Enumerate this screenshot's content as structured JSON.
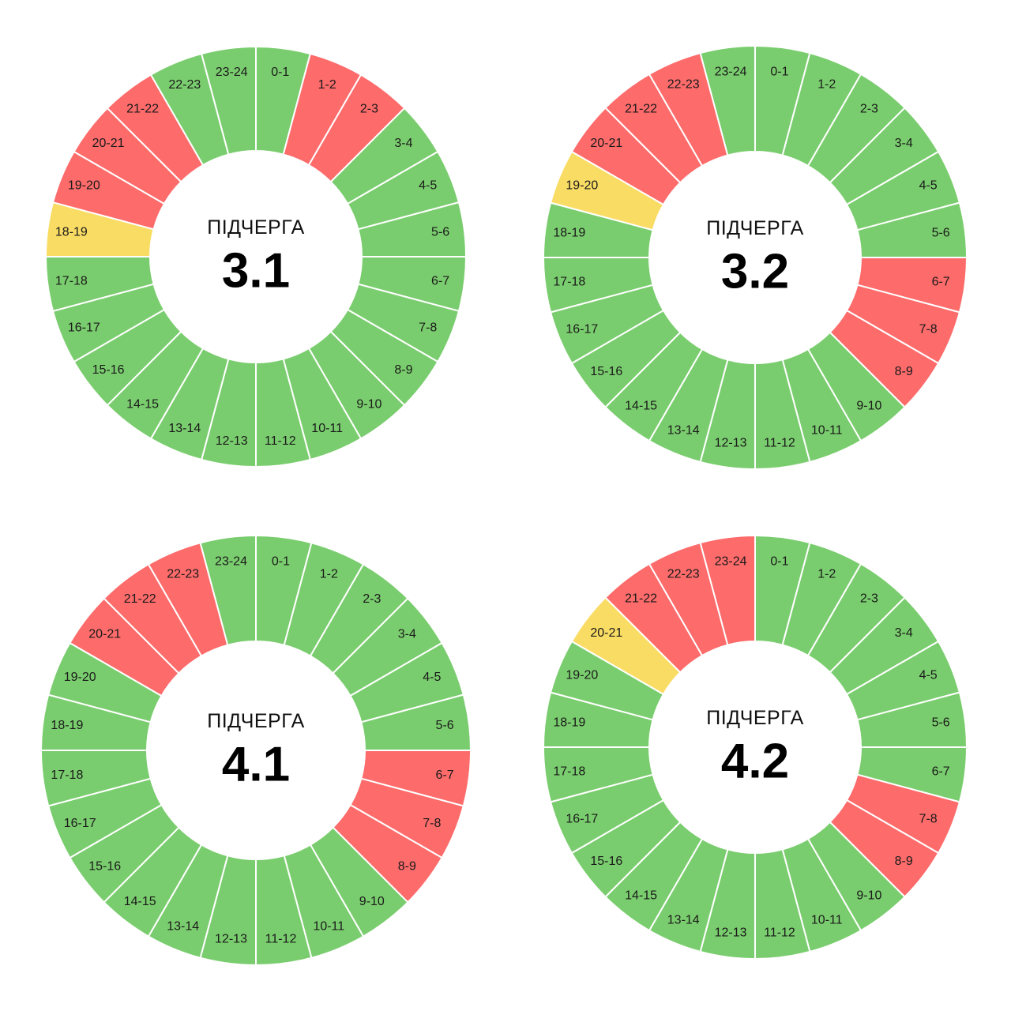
{
  "colors": {
    "on": "#7acd6e",
    "off": "#fd6b6b",
    "maybe": "#f9dc64"
  },
  "center_label": "ПІДЧЕРГА",
  "chart_data": [
    {
      "type": "pie",
      "subgroup": "3.1",
      "slices": [
        {
          "hour": "0-1",
          "state": "on"
        },
        {
          "hour": "1-2",
          "state": "off"
        },
        {
          "hour": "2-3",
          "state": "off"
        },
        {
          "hour": "3-4",
          "state": "on"
        },
        {
          "hour": "4-5",
          "state": "on"
        },
        {
          "hour": "5-6",
          "state": "on"
        },
        {
          "hour": "6-7",
          "state": "on"
        },
        {
          "hour": "7-8",
          "state": "on"
        },
        {
          "hour": "8-9",
          "state": "on"
        },
        {
          "hour": "9-10",
          "state": "on"
        },
        {
          "hour": "10-11",
          "state": "on"
        },
        {
          "hour": "11-12",
          "state": "on"
        },
        {
          "hour": "12-13",
          "state": "on"
        },
        {
          "hour": "13-14",
          "state": "on"
        },
        {
          "hour": "14-15",
          "state": "on"
        },
        {
          "hour": "15-16",
          "state": "on"
        },
        {
          "hour": "16-17",
          "state": "on"
        },
        {
          "hour": "17-18",
          "state": "on"
        },
        {
          "hour": "18-19",
          "state": "maybe"
        },
        {
          "hour": "19-20",
          "state": "off"
        },
        {
          "hour": "20-21",
          "state": "off"
        },
        {
          "hour": "21-22",
          "state": "off"
        },
        {
          "hour": "22-23",
          "state": "on"
        },
        {
          "hour": "23-24",
          "state": "on"
        }
      ]
    },
    {
      "type": "pie",
      "subgroup": "3.2",
      "slices": [
        {
          "hour": "0-1",
          "state": "on"
        },
        {
          "hour": "1-2",
          "state": "on"
        },
        {
          "hour": "2-3",
          "state": "on"
        },
        {
          "hour": "3-4",
          "state": "on"
        },
        {
          "hour": "4-5",
          "state": "on"
        },
        {
          "hour": "5-6",
          "state": "on"
        },
        {
          "hour": "6-7",
          "state": "off"
        },
        {
          "hour": "7-8",
          "state": "off"
        },
        {
          "hour": "8-9",
          "state": "off"
        },
        {
          "hour": "9-10",
          "state": "on"
        },
        {
          "hour": "10-11",
          "state": "on"
        },
        {
          "hour": "11-12",
          "state": "on"
        },
        {
          "hour": "12-13",
          "state": "on"
        },
        {
          "hour": "13-14",
          "state": "on"
        },
        {
          "hour": "14-15",
          "state": "on"
        },
        {
          "hour": "15-16",
          "state": "on"
        },
        {
          "hour": "16-17",
          "state": "on"
        },
        {
          "hour": "17-18",
          "state": "on"
        },
        {
          "hour": "18-19",
          "state": "on"
        },
        {
          "hour": "19-20",
          "state": "maybe"
        },
        {
          "hour": "20-21",
          "state": "off"
        },
        {
          "hour": "21-22",
          "state": "off"
        },
        {
          "hour": "22-23",
          "state": "off"
        },
        {
          "hour": "23-24",
          "state": "on"
        }
      ]
    },
    {
      "type": "pie",
      "subgroup": "4.1",
      "slices": [
        {
          "hour": "0-1",
          "state": "on"
        },
        {
          "hour": "1-2",
          "state": "on"
        },
        {
          "hour": "2-3",
          "state": "on"
        },
        {
          "hour": "3-4",
          "state": "on"
        },
        {
          "hour": "4-5",
          "state": "on"
        },
        {
          "hour": "5-6",
          "state": "on"
        },
        {
          "hour": "6-7",
          "state": "off"
        },
        {
          "hour": "7-8",
          "state": "off"
        },
        {
          "hour": "8-9",
          "state": "off"
        },
        {
          "hour": "9-10",
          "state": "on"
        },
        {
          "hour": "10-11",
          "state": "on"
        },
        {
          "hour": "11-12",
          "state": "on"
        },
        {
          "hour": "12-13",
          "state": "on"
        },
        {
          "hour": "13-14",
          "state": "on"
        },
        {
          "hour": "14-15",
          "state": "on"
        },
        {
          "hour": "15-16",
          "state": "on"
        },
        {
          "hour": "16-17",
          "state": "on"
        },
        {
          "hour": "17-18",
          "state": "on"
        },
        {
          "hour": "18-19",
          "state": "on"
        },
        {
          "hour": "19-20",
          "state": "on"
        },
        {
          "hour": "20-21",
          "state": "off"
        },
        {
          "hour": "21-22",
          "state": "off"
        },
        {
          "hour": "22-23",
          "state": "off"
        },
        {
          "hour": "23-24",
          "state": "on"
        }
      ]
    },
    {
      "type": "pie",
      "subgroup": "4.2",
      "slices": [
        {
          "hour": "0-1",
          "state": "on"
        },
        {
          "hour": "1-2",
          "state": "on"
        },
        {
          "hour": "2-3",
          "state": "on"
        },
        {
          "hour": "3-4",
          "state": "on"
        },
        {
          "hour": "4-5",
          "state": "on"
        },
        {
          "hour": "5-6",
          "state": "on"
        },
        {
          "hour": "6-7",
          "state": "on"
        },
        {
          "hour": "7-8",
          "state": "off"
        },
        {
          "hour": "8-9",
          "state": "off"
        },
        {
          "hour": "9-10",
          "state": "on"
        },
        {
          "hour": "10-11",
          "state": "on"
        },
        {
          "hour": "11-12",
          "state": "on"
        },
        {
          "hour": "12-13",
          "state": "on"
        },
        {
          "hour": "13-14",
          "state": "on"
        },
        {
          "hour": "14-15",
          "state": "on"
        },
        {
          "hour": "15-16",
          "state": "on"
        },
        {
          "hour": "16-17",
          "state": "on"
        },
        {
          "hour": "17-18",
          "state": "on"
        },
        {
          "hour": "18-19",
          "state": "on"
        },
        {
          "hour": "19-20",
          "state": "on"
        },
        {
          "hour": "20-21",
          "state": "maybe"
        },
        {
          "hour": "21-22",
          "state": "off"
        },
        {
          "hour": "22-23",
          "state": "off"
        },
        {
          "hour": "23-24",
          "state": "off"
        }
      ]
    }
  ]
}
